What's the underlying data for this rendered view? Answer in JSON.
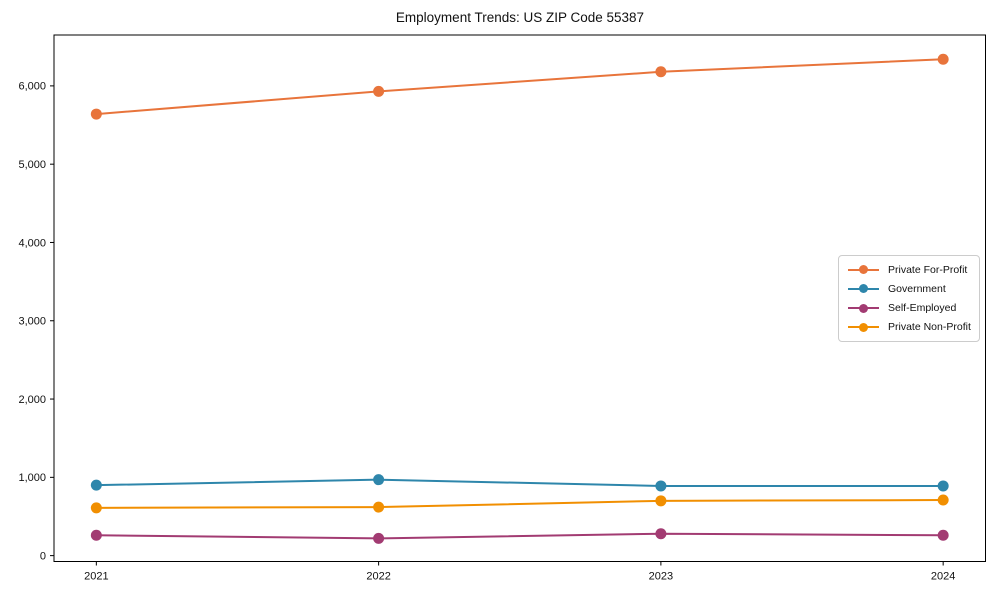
{
  "title": "Employment Trends: US ZIP Code 55387",
  "chart_data": {
    "type": "line",
    "title": "Employment Trends: US ZIP Code 55387",
    "xlabel": "",
    "ylabel": "",
    "x": [
      2021,
      2022,
      2023,
      2024
    ],
    "x_tick_labels": [
      "2021",
      "2022",
      "2023",
      "2024"
    ],
    "y_ticks": [
      0,
      1000,
      2000,
      3000,
      4000,
      5000,
      6000
    ],
    "y_tick_labels": [
      "0",
      "1,000",
      "2,000",
      "3,000",
      "4,000",
      "5,000",
      "6,000"
    ],
    "xlim": [
      2020.85,
      2024.15
    ],
    "ylim": [
      -75,
      6650
    ],
    "grid": false,
    "legend_position": "center right",
    "marker": "circle",
    "series": [
      {
        "name": "Private For-Profit",
        "color": "#E8743B",
        "values": [
          5640,
          5930,
          6180,
          6340
        ]
      },
      {
        "name": "Government",
        "color": "#2E86AB",
        "values": [
          900,
          970,
          890,
          890
        ]
      },
      {
        "name": "Self-Employed",
        "color": "#A23B72",
        "values": [
          260,
          220,
          280,
          260
        ]
      },
      {
        "name": "Private Non-Profit",
        "color": "#F18F01",
        "values": [
          610,
          620,
          700,
          710
        ]
      }
    ]
  }
}
